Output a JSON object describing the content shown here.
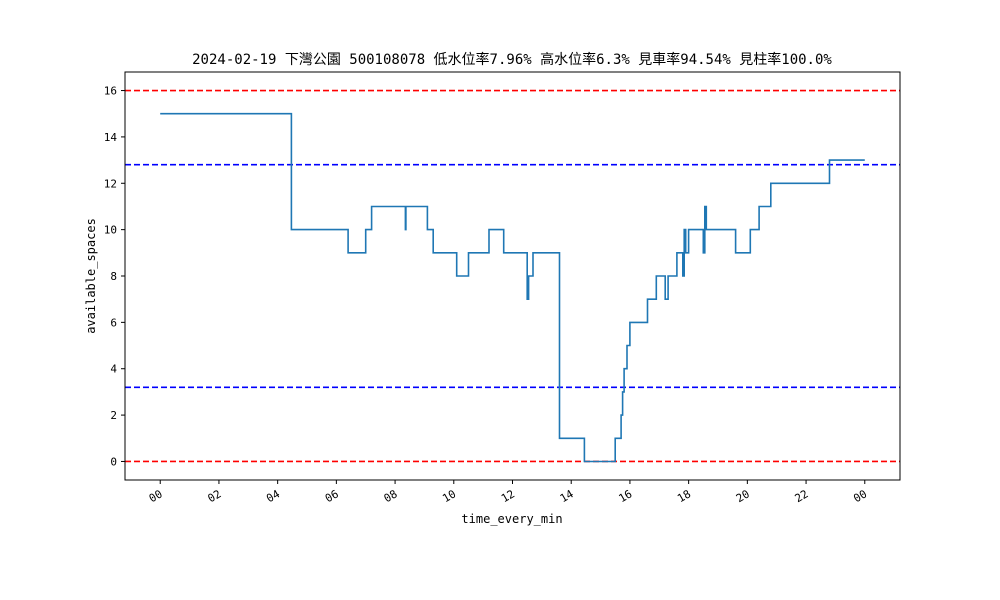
{
  "chart_data": {
    "type": "line",
    "title": "2024-02-19 下灣公園 500108078 低水位率7.96% 高水位率6.3% 見車率94.54% 見柱率100.0%",
    "xlabel": "time_every_min",
    "ylabel": "available_spaces",
    "x_tick_labels": [
      "00",
      "02",
      "04",
      "06",
      "08",
      "10",
      "12",
      "14",
      "16",
      "18",
      "20",
      "22",
      "00"
    ],
    "y_ticks": [
      0,
      2,
      4,
      6,
      8,
      10,
      12,
      14,
      16
    ],
    "xlim_hours": [
      -1.2,
      25.2
    ],
    "ylim": [
      -0.8,
      16.8
    ],
    "grid": false,
    "reference_lines": [
      {
        "value": 16,
        "color": "#ff0000",
        "style": "dashed"
      },
      {
        "value": 12.8,
        "color": "#0000ff",
        "style": "dashed"
      },
      {
        "value": 3.2,
        "color": "#0000ff",
        "style": "dashed"
      },
      {
        "value": 0,
        "color": "#ff0000",
        "style": "dashed"
      }
    ],
    "series_color": "#1f77b4",
    "x_hours": [
      0,
      4.47,
      4.47,
      6.4,
      6.4,
      7.0,
      7.0,
      7.2,
      7.2,
      8.35,
      8.35,
      8.37,
      8.37,
      9.1,
      9.1,
      9.3,
      9.3,
      10.1,
      10.1,
      10.5,
      10.5,
      11.2,
      11.2,
      11.7,
      11.7,
      12.5,
      12.5,
      12.55,
      12.55,
      12.7,
      12.7,
      13.6,
      13.6,
      14.45,
      14.45,
      14.5,
      14.5,
      14.55,
      14.55,
      15.5,
      15.5,
      15.7,
      15.7,
      15.75,
      15.75,
      15.8,
      15.8,
      15.85,
      15.85,
      15.9,
      15.9,
      16.0,
      16.0,
      16.08,
      16.08,
      16.15,
      16.15,
      16.6,
      16.6,
      16.9,
      16.9,
      17.2,
      17.2,
      17.3,
      17.3,
      17.35,
      17.35,
      17.6,
      17.6,
      17.8,
      17.8,
      17.85,
      17.85,
      17.9,
      17.9,
      18.0,
      18.0,
      18.5,
      18.5,
      18.55,
      18.55,
      18.6,
      18.6,
      18.65,
      18.65,
      19.6,
      19.6,
      20.1,
      20.1,
      20.4,
      20.4,
      20.8,
      20.8,
      22.8,
      22.8,
      24.0
    ],
    "values": [
      15,
      15,
      10,
      10,
      9,
      9,
      10,
      10,
      11,
      11,
      10,
      10,
      11,
      11,
      10,
      10,
      9,
      9,
      8,
      8,
      9,
      9,
      10,
      10,
      9,
      9,
      7,
      7,
      8,
      8,
      9,
      9,
      1,
      1,
      0,
      0,
      0,
      0,
      0,
      0,
      1,
      1,
      2,
      2,
      3,
      3,
      4,
      4,
      4,
      4,
      5,
      5,
      6,
      6,
      6,
      6,
      6,
      6,
      7,
      7,
      8,
      8,
      7,
      7,
      8,
      8,
      8,
      8,
      9,
      9,
      8,
      8,
      10,
      10,
      9,
      9,
      10,
      10,
      9,
      9,
      11,
      11,
      10,
      10,
      10,
      10,
      9,
      9,
      10,
      10,
      11,
      11,
      12,
      12,
      13,
      13
    ]
  }
}
